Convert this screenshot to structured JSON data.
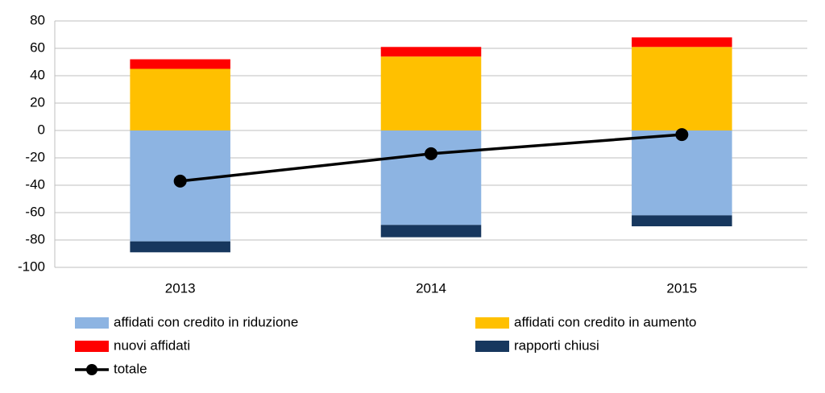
{
  "chart_data": {
    "type": "bar",
    "categories": [
      "2013",
      "2014",
      "2015"
    ],
    "series": [
      {
        "name": "affidati con credito in riduzione",
        "color": "#8db4e2",
        "values": [
          -81,
          -69,
          -62
        ]
      },
      {
        "name": "affidati con credito in aumento",
        "color": "#ffc000",
        "values": [
          45,
          54,
          61
        ]
      },
      {
        "name": "nuovi affidati",
        "color": "#ff0000",
        "values": [
          7,
          7,
          7
        ]
      },
      {
        "name": "rapporti chiusi",
        "color": "#17375e",
        "values": [
          -8,
          -9,
          -8
        ]
      },
      {
        "name": "totale",
        "color": "#000000",
        "type": "line",
        "values": [
          -37,
          -17,
          -3
        ]
      }
    ],
    "ylim": [
      -100,
      80
    ],
    "yticks": [
      -100,
      -80,
      -60,
      -40,
      -20,
      0,
      20,
      40,
      60,
      80
    ],
    "grid": true
  }
}
